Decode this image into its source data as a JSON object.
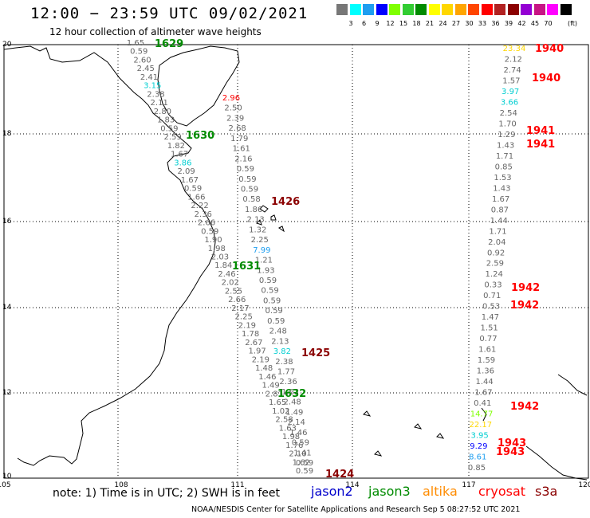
{
  "title": "12:00 − 23:59 UTC 09/02/2021",
  "subtitle": "12 hour collection of altimeter wave heights",
  "legend": {
    "colors": [
      "#777777",
      "#00ffff",
      "#1e9ef0",
      "#0000ff",
      "#7fff00",
      "#32cd32",
      "#008b00",
      "#ffff00",
      "#ffd700",
      "#ffa500",
      "#ff4500",
      "#ff0000",
      "#b22222",
      "#8b0000",
      "#9400d3",
      "#c71585",
      "#ff00ff",
      "#000000"
    ],
    "labels": [
      "3",
      "6",
      "9",
      "12",
      "15",
      "18",
      "21",
      "24",
      "27",
      "30",
      "33",
      "36",
      "39",
      "42",
      "45",
      "70"
    ],
    "unit": "(ft)"
  },
  "axes": {
    "lon_labels": [
      "105",
      "108",
      "111",
      "114",
      "117",
      "120"
    ],
    "lat_labels": [
      "20",
      "18",
      "16",
      "14",
      "12",
      "10"
    ]
  },
  "tracks": [
    {
      "lon": 109.0,
      "values": [
        "1.65",
        "0.59",
        "2.60",
        "2.45",
        "2.41",
        "3.15",
        "2.38",
        "2.11",
        "2.80",
        "1.83",
        "0.59",
        "2.59",
        "1.82",
        "1.67",
        "3.86",
        "2.09",
        "1.67",
        "0.59",
        "1.66",
        "2.22",
        "2.36",
        "2.66",
        "0.59",
        "1.90",
        "1.98",
        "2.03",
        "1.84",
        "2.46",
        "2.02",
        "2.55",
        "2.66",
        "2.17",
        "2.25",
        "2.19",
        "1.78",
        "2.67",
        "1.97",
        "2.19",
        "1.48",
        "1.46",
        "1.49",
        "2.81",
        "1.65",
        "1.02",
        "2.58",
        "1.63",
        "1.98",
        "1.76",
        "2.10",
        "1.62",
        "0.59"
      ]
    },
    {
      "lon": 111.0,
      "values": [
        "2.96",
        "2.50",
        "2.39",
        "2.68",
        "1.79",
        "1.61",
        "2.16",
        "0.59",
        "0.59",
        "0.59",
        "0.58",
        "1.86",
        "2.13",
        "1.32",
        "2.25",
        "7.99",
        "1.21",
        "1.93",
        "0.59",
        "0.59",
        "0.59",
        "0.59",
        "0.59",
        "2.48",
        "2.13",
        "3.82",
        "2.38",
        "1.77",
        "2.36",
        "1.62",
        "2.48",
        "1.49",
        "2.14",
        "1.46",
        "0.59",
        "1.41",
        "0.59"
      ]
    },
    {
      "lon": 117.0,
      "values": [
        "23.34",
        "2.12",
        "2.74",
        "1.57",
        "3.97",
        "3.66",
        "2.54",
        "1.70",
        "1.29",
        "1.43",
        "1.71",
        "0.85",
        "1.53",
        "1.43",
        "1.67",
        "0.87",
        "1.44",
        "1.71",
        "2.04",
        "0.92",
        "2.59",
        "1.24",
        "0.33",
        "0.71",
        "0.53",
        "1.47",
        "1.51",
        "0.77",
        "1.61",
        "1.59",
        "1.36",
        "1.44",
        "1.67",
        "0.41",
        "14.77",
        "22.17",
        "3.95",
        "9.29",
        "8.61",
        "0.85"
      ]
    }
  ],
  "pass_times": [
    {
      "text": "1629",
      "color": "#008b00"
    },
    {
      "text": "1630",
      "color": "#008b00"
    },
    {
      "text": "1631",
      "color": "#008b00"
    },
    {
      "text": "1632",
      "color": "#008b00"
    },
    {
      "text": "1426",
      "color": "#8b0000"
    },
    {
      "text": "1425",
      "color": "#8b0000"
    },
    {
      "text": "1424",
      "color": "#8b0000"
    },
    {
      "text": "1940",
      "color": "#ff0000"
    },
    {
      "text": "1940",
      "color": "#ff0000"
    },
    {
      "text": "1941",
      "color": "#ff0000"
    },
    {
      "text": "1941",
      "color": "#ff0000"
    },
    {
      "text": "1942",
      "color": "#ff0000"
    },
    {
      "text": "1942",
      "color": "#ff0000"
    },
    {
      "text": "1942",
      "color": "#ff0000"
    },
    {
      "text": "1943",
      "color": "#ff0000"
    },
    {
      "text": "1943",
      "color": "#ff0000"
    }
  ],
  "note": "note:  1) Time is in UTC; 2) SWH is in feet",
  "satellites": [
    {
      "name": "jason2",
      "color": "#0000cc"
    },
    {
      "name": "jason3",
      "color": "#008b00"
    },
    {
      "name": "altika",
      "color": "#ff8c00"
    },
    {
      "name": "cryosat",
      "color": "#ff0000"
    },
    {
      "name": "s3a",
      "color": "#8b0000"
    }
  ],
  "footer": "NOAA/NESDIS Center for Satellite Applications and Research    Sep  5 08:27:52 UTC 2021"
}
